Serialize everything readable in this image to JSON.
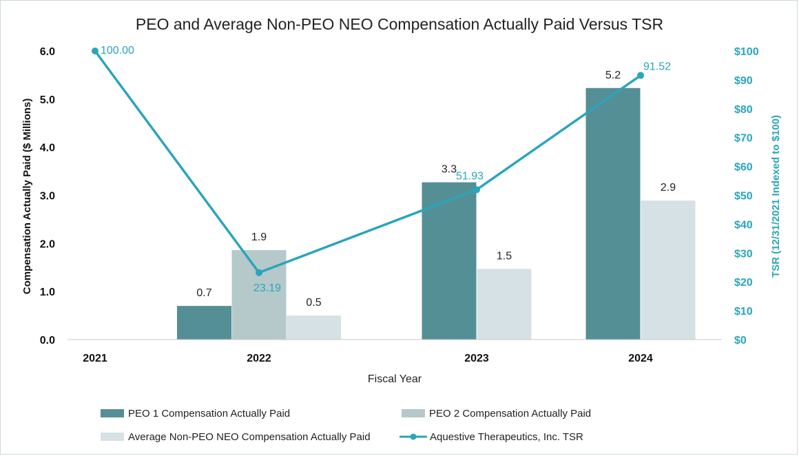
{
  "chart_data": {
    "type": "bar",
    "title": "PEO and Average Non-PEO NEO Compensation Actually Paid Versus TSR",
    "xlabel": "Fiscal Year",
    "ylabel": "Compensation Actually Paid ($ Millions)",
    "y2label": "TSR (12/31/2021 Indexed to $100)",
    "categories": [
      "2021",
      "2022",
      "2023",
      "2024"
    ],
    "ylim": [
      0,
      6
    ],
    "y_ticks": [
      "0.0",
      "1.0",
      "2.0",
      "3.0",
      "4.0",
      "5.0",
      "6.0"
    ],
    "y2lim": [
      0,
      100
    ],
    "y2_ticks": [
      "$0",
      "$10",
      "$20",
      "$30",
      "$40",
      "$50",
      "$60",
      "$70",
      "$80",
      "$90",
      "$100"
    ],
    "series": [
      {
        "name": "PEO 1 Compensation Actually Paid",
        "kind": "bar",
        "color": "#558f96",
        "values": [
          null,
          0.7,
          3.27,
          5.23
        ],
        "labels": [
          "",
          "0.7",
          "3.3",
          "5.2"
        ]
      },
      {
        "name": "PEO 2 Compensation Actually Paid",
        "kind": "bar",
        "color": "#b5c8ca",
        "values": [
          null,
          1.86,
          null,
          null
        ],
        "labels": [
          "",
          "1.9",
          "",
          ""
        ]
      },
      {
        "name": "Average Non-PEO NEO Compensation Actually Paid",
        "kind": "bar",
        "color": "#d6e1e5",
        "values": [
          null,
          0.5,
          1.47,
          2.89
        ],
        "labels": [
          "",
          "0.5",
          "1.5",
          "2.9"
        ]
      },
      {
        "name": "Aquestive Therapeutics, Inc. TSR",
        "kind": "line",
        "axis": "right",
        "color": "#2aa5bb",
        "values": [
          100.0,
          23.19,
          51.93,
          91.52
        ],
        "labels": [
          "100.00",
          "23.19",
          "51.93",
          "91.52"
        ]
      }
    ],
    "legend_position": "bottom",
    "grid": false
  }
}
